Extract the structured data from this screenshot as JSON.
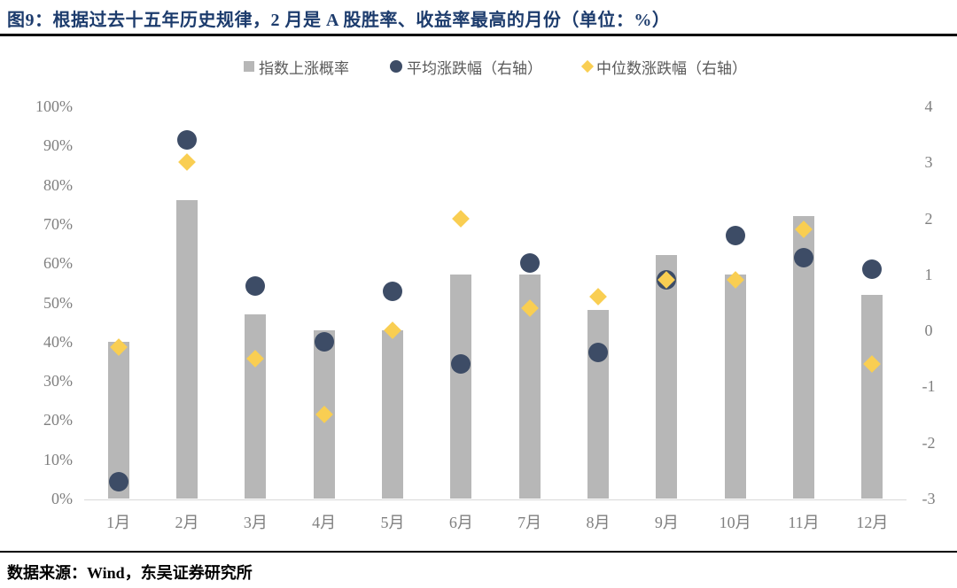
{
  "header": {
    "title": "图9：根据过去十五年历史规律，2 月是 A 股胜率、收益率最高的月份（单位：%）"
  },
  "footer": {
    "source": "数据来源：Wind，东吴证券研究所"
  },
  "colors": {
    "title": "#1d3c6d",
    "bar": "#b7b7b7",
    "circle": "#3d4c66",
    "diamond": "#f9ce52",
    "axis_text": "#7f7f7f",
    "legend_text": "#595959",
    "axis_line": "#d9d9d9",
    "rule": "#000000"
  },
  "legend": {
    "items": [
      {
        "label": "指数上涨概率",
        "marker": "square"
      },
      {
        "label": "平均涨跌幅（右轴）",
        "marker": "circle"
      },
      {
        "label": "中位数涨跌幅（右轴）",
        "marker": "diamond"
      }
    ]
  },
  "chart_data": {
    "type": "bar",
    "subtype": "combo-bar-with-scatter-points",
    "title": "图9：根据过去十五年历史规律，2 月是 A 股胜率、收益率最高的月份（单位：%）",
    "categories": [
      "1月",
      "2月",
      "3月",
      "4月",
      "5月",
      "6月",
      "7月",
      "8月",
      "9月",
      "10月",
      "11月",
      "12月"
    ],
    "series": [
      {
        "name": "指数上涨概率",
        "type": "bar",
        "axis": "left",
        "marker": "square",
        "values": [
          40,
          76,
          47,
          43,
          43,
          57,
          57,
          48,
          62,
          57,
          72,
          52
        ]
      },
      {
        "name": "平均涨跌幅（右轴）",
        "type": "scatter",
        "axis": "right",
        "marker": "circle",
        "values": [
          -2.7,
          3.4,
          0.8,
          -0.2,
          0.7,
          -0.6,
          1.2,
          -0.4,
          0.9,
          1.7,
          1.3,
          1.1
        ]
      },
      {
        "name": "中位数涨跌幅（右轴）",
        "type": "scatter",
        "axis": "right",
        "marker": "diamond",
        "values": [
          -0.3,
          3.0,
          -0.5,
          -1.5,
          0.0,
          2.0,
          0.4,
          0.6,
          0.9,
          0.9,
          1.8,
          -0.6
        ]
      }
    ],
    "left_axis": {
      "min": 0,
      "max": 100,
      "step": 10,
      "unit": "%",
      "tick_labels": [
        "100%",
        "90%",
        "80%",
        "70%",
        "60%",
        "50%",
        "40%",
        "30%",
        "20%",
        "10%",
        "0%"
      ]
    },
    "right_axis": {
      "min": -3,
      "max": 4,
      "step": 1,
      "tick_labels": [
        "4",
        "3",
        "2",
        "1",
        "0",
        "-1",
        "-2",
        "-3"
      ]
    },
    "grid": false,
    "legend_position": "top"
  }
}
